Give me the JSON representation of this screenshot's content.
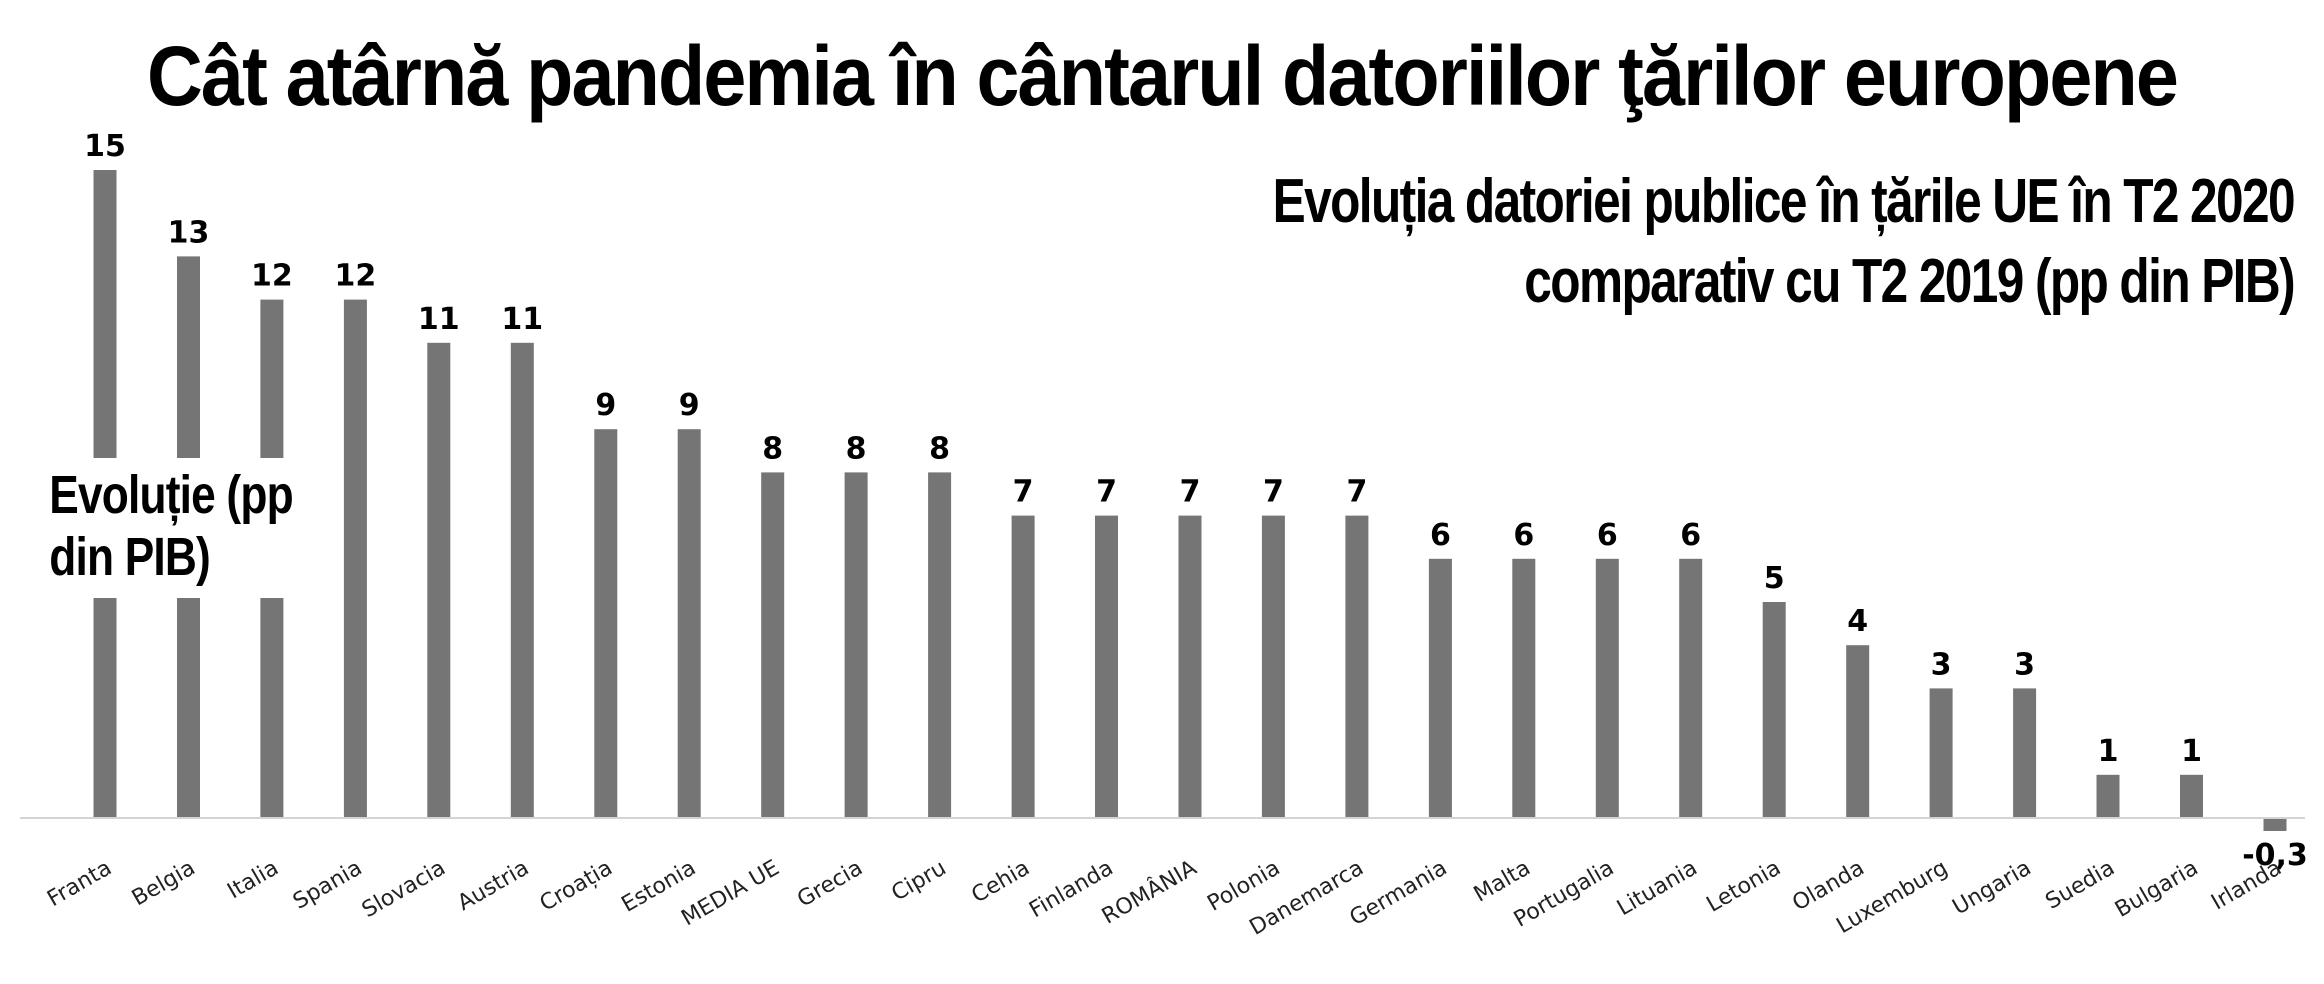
{
  "chart_data": {
    "type": "bar",
    "title": "Cât atârnă pandemia în cântarul datoriilor ţărilor europene",
    "subtitle": [
      "Evoluția datoriei publice în țările UE în T2 2020",
      "comparativ cu T2 2019 (pp din PIB)"
    ],
    "ylabel": "Evoluție (pp din PIB)",
    "series": [
      {
        "name": "Evoluție (pp din PIB)"
      }
    ],
    "categories": [
      "Franta",
      "Belgia",
      "Italia",
      "Spania",
      "Slovacia",
      "Austria",
      "Croația",
      "Estonia",
      "MEDIA UE",
      "Grecia",
      "Cipru",
      "Cehia",
      "Finlanda",
      "ROMÂNIA",
      "Polonia",
      "Danemarca",
      "Germania",
      "Malta",
      "Portugalia",
      "Lituania",
      "Letonia",
      "Olanda",
      "Luxemburg",
      "Ungaria",
      "Suedia",
      "Bulgaria",
      "Irlanda"
    ],
    "values": [
      15,
      13,
      12,
      12,
      11,
      11,
      9,
      9,
      8,
      8,
      8,
      7,
      7,
      7,
      7,
      7,
      6,
      6,
      6,
      6,
      5,
      4,
      3,
      3,
      1,
      1,
      -0.3
    ],
    "value_labels": [
      "15",
      "13",
      "12",
      "12",
      "11",
      "11",
      "9",
      "9",
      "8",
      "8",
      "8",
      "7",
      "7",
      "7",
      "7",
      "7",
      "6",
      "6",
      "6",
      "6",
      "5",
      "4",
      "3",
      "3",
      "1",
      "1",
      "-0,3"
    ],
    "ylim": [
      -0.3,
      15
    ],
    "grid": false,
    "bar_color": "#757575"
  }
}
